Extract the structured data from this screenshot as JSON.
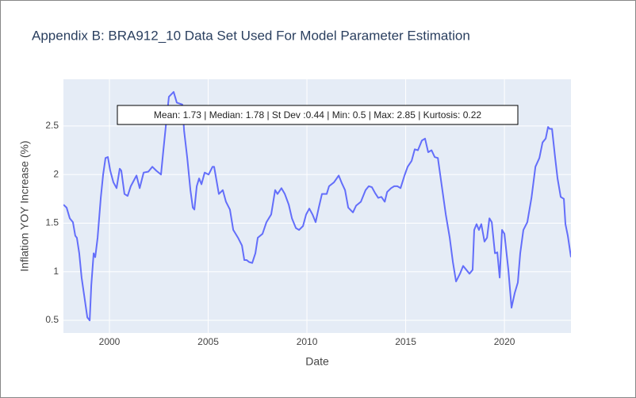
{
  "chart_data": {
    "type": "line",
    "title": "Appendix B: BRA912_10 Data Set Used For Model Parameter Estimation",
    "xlabel": "Date",
    "ylabel": "Inflation YOY Increase (%)",
    "annotation": "Mean: 1.73 | Median: 1.78 | St Dev :0.44 | Min: 0.5 | Max: 2.85 | Kurtosis: 0.22",
    "xlim": [
      1997.67,
      2023.37
    ],
    "xticks": [
      2000,
      2005,
      2010,
      2015,
      2020
    ],
    "ylim": [
      0.37,
      2.98
    ],
    "yticks": [
      0.5,
      1,
      1.5,
      2,
      2.5
    ],
    "grid": true,
    "x": [
      1997.67,
      1997.83,
      1997.99,
      1998.15,
      1998.27,
      1998.35,
      1998.47,
      1998.59,
      1998.76,
      1998.88,
      1999.0,
      1999.08,
      1999.2,
      1999.28,
      1999.4,
      1999.56,
      1999.68,
      1999.8,
      1999.92,
      2000.04,
      2000.2,
      2000.36,
      2000.52,
      2000.6,
      2000.76,
      2000.92,
      2001.08,
      2001.37,
      2001.53,
      2001.73,
      2001.97,
      2002.17,
      2002.37,
      2002.61,
      2002.73,
      2002.85,
      2003.01,
      2003.25,
      2003.41,
      2003.69,
      2003.78,
      2003.94,
      2004.1,
      2004.22,
      2004.3,
      2004.42,
      2004.54,
      2004.66,
      2004.82,
      2005.02,
      2005.22,
      2005.3,
      2005.54,
      2005.74,
      2005.9,
      2006.1,
      2006.27,
      2006.51,
      2006.71,
      2006.83,
      2006.95,
      2007.07,
      2007.23,
      2007.39,
      2007.51,
      2007.75,
      2007.95,
      2008.19,
      2008.39,
      2008.51,
      2008.71,
      2008.88,
      2009.08,
      2009.24,
      2009.44,
      2009.6,
      2009.8,
      2009.96,
      2010.12,
      2010.28,
      2010.44,
      2010.6,
      2010.76,
      2011.0,
      2011.12,
      2011.37,
      2011.61,
      2011.77,
      2011.93,
      2012.09,
      2012.33,
      2012.49,
      2012.73,
      2012.97,
      2013.13,
      2013.29,
      2013.45,
      2013.61,
      2013.77,
      2013.94,
      2014.06,
      2014.26,
      2014.42,
      2014.58,
      2014.74,
      2014.94,
      2015.1,
      2015.3,
      2015.46,
      2015.62,
      2015.82,
      2015.98,
      2016.14,
      2016.31,
      2016.47,
      2016.63,
      2016.83,
      2017.03,
      2017.23,
      2017.39,
      2017.55,
      2017.75,
      2017.91,
      2018.07,
      2018.23,
      2018.39,
      2018.47,
      2018.59,
      2018.71,
      2018.83,
      2018.99,
      2019.12,
      2019.24,
      2019.36,
      2019.52,
      2019.64,
      2019.76,
      2019.88,
      2020.0,
      2020.2,
      2020.36,
      2020.52,
      2020.68,
      2020.8,
      2020.96,
      2021.16,
      2021.37,
      2021.57,
      2021.77,
      2021.93,
      2022.09,
      2022.21,
      2022.29,
      2022.41,
      2022.57,
      2022.69,
      2022.85,
      2023.01,
      2023.09,
      2023.21,
      2023.37
    ],
    "series": [
      {
        "color": "#636efa",
        "values": [
          1.69,
          1.66,
          1.55,
          1.51,
          1.37,
          1.35,
          1.19,
          0.94,
          0.7,
          0.53,
          0.5,
          0.86,
          1.19,
          1.15,
          1.35,
          1.76,
          2.0,
          2.17,
          2.18,
          2.04,
          1.92,
          1.86,
          2.06,
          2.04,
          1.8,
          1.78,
          1.88,
          1.99,
          1.86,
          2.02,
          2.03,
          2.08,
          2.04,
          2.0,
          2.25,
          2.49,
          2.8,
          2.85,
          2.74,
          2.72,
          2.45,
          2.17,
          1.84,
          1.66,
          1.64,
          1.88,
          1.96,
          1.9,
          2.02,
          2.0,
          2.08,
          2.08,
          1.8,
          1.84,
          1.72,
          1.64,
          1.43,
          1.35,
          1.27,
          1.12,
          1.12,
          1.1,
          1.09,
          1.19,
          1.35,
          1.39,
          1.51,
          1.59,
          1.84,
          1.8,
          1.86,
          1.8,
          1.69,
          1.55,
          1.45,
          1.43,
          1.47,
          1.59,
          1.65,
          1.59,
          1.51,
          1.66,
          1.8,
          1.8,
          1.88,
          1.92,
          1.99,
          1.91,
          1.84,
          1.66,
          1.61,
          1.68,
          1.72,
          1.84,
          1.88,
          1.87,
          1.81,
          1.76,
          1.77,
          1.72,
          1.82,
          1.86,
          1.88,
          1.88,
          1.86,
          1.99,
          2.08,
          2.14,
          2.26,
          2.25,
          2.35,
          2.37,
          2.23,
          2.25,
          2.18,
          2.17,
          1.88,
          1.59,
          1.35,
          1.1,
          0.9,
          0.98,
          1.06,
          1.02,
          0.98,
          1.02,
          1.43,
          1.49,
          1.43,
          1.49,
          1.31,
          1.35,
          1.55,
          1.51,
          1.19,
          1.2,
          0.94,
          1.43,
          1.39,
          1.02,
          0.63,
          0.78,
          0.89,
          1.19,
          1.43,
          1.51,
          1.76,
          2.08,
          2.17,
          2.33,
          2.37,
          2.49,
          2.47,
          2.47,
          2.17,
          1.96,
          1.77,
          1.75,
          1.49,
          1.37,
          1.15
        ]
      }
    ]
  }
}
